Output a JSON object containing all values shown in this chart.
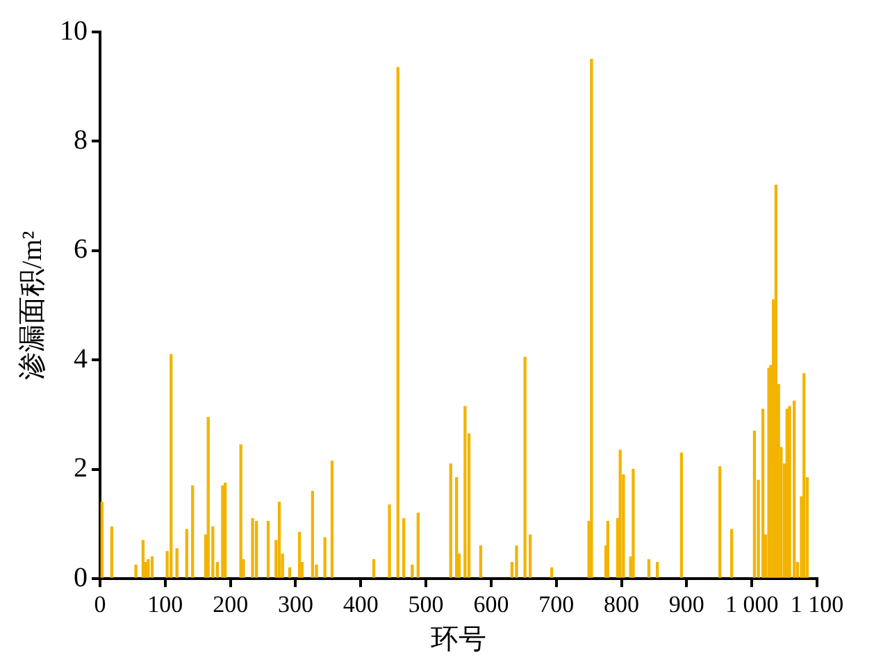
{
  "chart_data": {
    "type": "bar",
    "xlabel": "环号",
    "ylabel": "渗漏面积/m²",
    "color": "#f2b400",
    "x": [
      3,
      18,
      55,
      66,
      70,
      74,
      80,
      103,
      109,
      118,
      133,
      142,
      162,
      166,
      173,
      180,
      188,
      192,
      216,
      220,
      234,
      240,
      258,
      270,
      275,
      280,
      291,
      306,
      310,
      326,
      332,
      345,
      356,
      420,
      444,
      457,
      466,
      479,
      488,
      538,
      547,
      551,
      560,
      566,
      584,
      632,
      639,
      652,
      660,
      693,
      750,
      754,
      776,
      779,
      794,
      798,
      803,
      814,
      818,
      842,
      855,
      892,
      951,
      969,
      1004,
      1010,
      1017,
      1021,
      1026,
      1029,
      1033,
      1037,
      1041,
      1045,
      1050,
      1054,
      1058,
      1065,
      1070,
      1076,
      1080,
      1085
    ],
    "values": [
      1.4,
      0.95,
      0.25,
      0.7,
      0.3,
      0.35,
      0.4,
      0.5,
      4.1,
      0.55,
      0.9,
      1.7,
      0.8,
      2.95,
      0.95,
      0.3,
      1.7,
      1.75,
      2.45,
      0.35,
      1.1,
      1.05,
      1.05,
      0.7,
      1.4,
      0.45,
      0.2,
      0.85,
      0.3,
      1.6,
      0.25,
      0.75,
      2.15,
      0.35,
      1.35,
      9.35,
      1.1,
      0.25,
      1.2,
      2.1,
      1.85,
      0.45,
      3.15,
      2.65,
      0.6,
      0.3,
      0.6,
      4.05,
      0.8,
      0.2,
      1.05,
      9.5,
      0.6,
      1.05,
      1.1,
      2.35,
      1.9,
      0.4,
      2.0,
      0.35,
      0.3,
      2.3,
      2.05,
      0.9,
      2.7,
      1.8,
      3.1,
      0.8,
      3.85,
      3.9,
      5.1,
      7.2,
      3.55,
      2.4,
      2.1,
      3.1,
      3.15,
      3.25,
      0.3,
      1.5,
      3.75,
      1.85
    ],
    "xlim": [
      0,
      1100
    ],
    "xticks": [
      0,
      100,
      200,
      300,
      400,
      500,
      600,
      700,
      800,
      900,
      {
        "value": 1000,
        "label": "1 000"
      },
      {
        "value": 1100,
        "label": "1 100"
      }
    ],
    "ylim": [
      0,
      10
    ],
    "yticks": [
      0,
      2,
      4,
      6,
      8,
      10
    ],
    "grid": false,
    "legend": false
  }
}
